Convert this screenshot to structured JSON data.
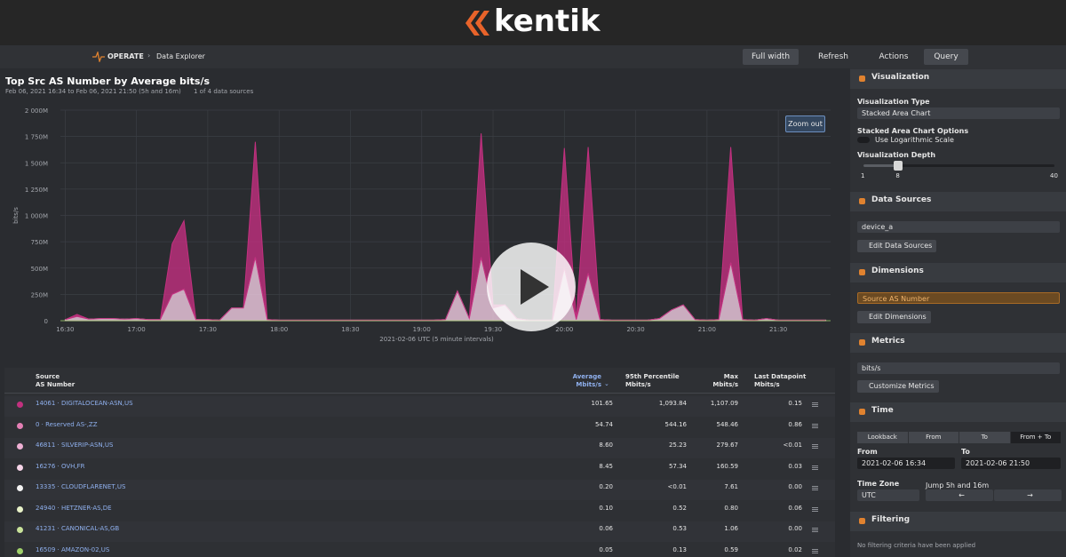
{
  "header": {
    "brand": "kentik"
  },
  "toolbar": {
    "section": "OPERATE",
    "page": "Data Explorer",
    "buttons": [
      "Full width",
      "Refresh",
      "Actions",
      "Query"
    ]
  },
  "chart_data": {
    "type": "area",
    "stacked": true,
    "title": "Top Src AS Number by Average bits/s",
    "subtitle": "Feb 06, 2021 16:34 to Feb 06, 2021 21:50 (5h and 16m)",
    "sources_note": "1 of 4 data sources",
    "zoom_button": "Zoom out",
    "x_label": "2021-02-06 UTC (5 minute intervals)",
    "y_label": "bits/s",
    "x": [
      "16:30",
      "16:35",
      "16:40",
      "16:45",
      "16:50",
      "16:55",
      "17:00",
      "17:05",
      "17:10",
      "17:15",
      "17:20",
      "17:25",
      "17:30",
      "17:35",
      "17:40",
      "17:45",
      "17:50",
      "17:55",
      "18:00",
      "18:05",
      "18:10",
      "18:15",
      "18:20",
      "18:25",
      "18:30",
      "18:35",
      "18:40",
      "18:45",
      "18:50",
      "18:55",
      "19:00",
      "19:05",
      "19:10",
      "19:15",
      "19:20",
      "19:25",
      "19:30",
      "19:35",
      "19:40",
      "19:45",
      "19:50",
      "19:55",
      "20:00",
      "20:05",
      "20:10",
      "20:15",
      "20:20",
      "20:25",
      "20:30",
      "20:35",
      "20:40",
      "20:45",
      "20:50",
      "20:55",
      "21:00",
      "21:05",
      "21:10",
      "21:15",
      "21:20",
      "21:25",
      "21:30",
      "21:35",
      "21:40",
      "21:45",
      "21:50"
    ],
    "xlim": [
      "16:28",
      "21:52"
    ],
    "xticks": [
      "16:30",
      "17:00",
      "17:30",
      "18:00",
      "18:30",
      "19:00",
      "19:30",
      "20:00",
      "20:30",
      "21:00",
      "21:30"
    ],
    "ylim": [
      0,
      2000
    ],
    "yticks": [
      0,
      {
        "value": 250,
        "label": "250M"
      },
      {
        "value": 500,
        "label": "500M"
      },
      {
        "value": 750,
        "label": "750M"
      },
      {
        "value": 1000,
        "label": "1 000M"
      },
      {
        "value": 1250,
        "label": "1 250M"
      },
      {
        "value": 1500,
        "label": "1 500M"
      },
      {
        "value": 1750,
        "label": "1 750M"
      },
      {
        "value": 2000,
        "label": "2 000M"
      }
    ],
    "grid": true,
    "series": [
      {
        "color": "#f2cde3",
        "values": [
          10,
          40,
          15,
          20,
          20,
          15,
          20,
          10,
          10,
          250,
          300,
          10,
          10,
          5,
          120,
          120,
          600,
          10,
          5,
          5,
          5,
          5,
          5,
          5,
          5,
          5,
          5,
          5,
          5,
          5,
          5,
          5,
          10,
          280,
          20,
          600,
          120,
          150,
          20,
          5,
          5,
          5,
          500,
          10,
          450,
          10,
          5,
          5,
          5,
          5,
          20,
          100,
          150,
          10,
          5,
          10,
          550,
          10,
          5,
          20,
          5,
          5,
          5,
          5,
          5
        ]
      },
      {
        "color": "#c2307f",
        "values": [
          0,
          20,
          0,
          0,
          0,
          0,
          0,
          0,
          0,
          480,
          650,
          0,
          0,
          0,
          0,
          0,
          1100,
          0,
          0,
          0,
          0,
          0,
          0,
          0,
          0,
          0,
          0,
          0,
          0,
          0,
          0,
          0,
          0,
          0,
          0,
          1180,
          30,
          0,
          0,
          0,
          0,
          0,
          1140,
          0,
          1200,
          0,
          0,
          0,
          0,
          0,
          0,
          0,
          0,
          0,
          0,
          0,
          1100,
          0,
          0,
          0,
          0,
          0,
          0,
          0,
          0
        ]
      }
    ]
  },
  "table": {
    "headers": [
      [
        "Source",
        "AS Number"
      ],
      [
        "Average",
        "Mbits/s"
      ],
      [
        "95th Percentile",
        "Mbits/s"
      ],
      [
        "Max",
        "Mbits/s"
      ],
      [
        "Last Datapoint",
        "Mbits/s"
      ]
    ],
    "rows": [
      {
        "color": "#c2307f",
        "name": "14061 · DIGITALOCEAN-ASN,US",
        "values": [
          "101.65",
          "1,093.84",
          "1,107.09",
          "0.15"
        ]
      },
      {
        "color": "#e37fb4",
        "name": "0 · Reserved AS-,ZZ",
        "values": [
          "54.74",
          "544.16",
          "548.46",
          "0.86"
        ]
      },
      {
        "color": "#eeb0d4",
        "name": "46811 · SILVERIP-ASN,US",
        "values": [
          "8.60",
          "25.23",
          "279.67",
          "<0.01"
        ]
      },
      {
        "color": "#f6d4e8",
        "name": "16276 · OVH,FR",
        "values": [
          "8.45",
          "57.34",
          "160.59",
          "0.03"
        ]
      },
      {
        "color": "#f4f4f4",
        "name": "13335 · CLOUDFLARENET,US",
        "values": [
          "0.20",
          "<0.01",
          "7.61",
          "0.00"
        ]
      },
      {
        "color": "#e8f2c8",
        "name": "24940 · HETZNER-AS,DE",
        "values": [
          "0.10",
          "0.52",
          "0.80",
          "0.06"
        ]
      },
      {
        "color": "#c9e39a",
        "name": "41231 · CANONICAL-AS,GB",
        "values": [
          "0.06",
          "0.53",
          "1.06",
          "0.00"
        ]
      },
      {
        "color": "#9fd06a",
        "name": "16509 · AMAZON-02,US",
        "values": [
          "0.05",
          "0.13",
          "0.59",
          "0.02"
        ]
      }
    ]
  },
  "sidebar": {
    "visualization": {
      "title": "Visualization",
      "type_label": "Visualization Type",
      "type": "Stacked Area Chart",
      "options_label": "Stacked Area Chart Options",
      "log_label": "Use Logarithmic Scale",
      "depth_label": "Visualization Depth",
      "depth_min": 1,
      "depth": 8,
      "depth_max": 40
    },
    "data_sources": {
      "title": "Data Sources",
      "source": "device_a",
      "button": "Edit Data Sources"
    },
    "dimensions": {
      "title": "Dimensions",
      "dimension": "Source AS Number",
      "button": "Edit Dimensions"
    },
    "metrics": {
      "title": "Metrics",
      "metric": "bits/s",
      "button": "Customize Metrics"
    },
    "time": {
      "title": "Time",
      "tabs": [
        "Lookback",
        "From",
        "To",
        "From + To"
      ],
      "from_label": "From",
      "to_label": "To",
      "from": "2021-02-06 16:34",
      "to": "2021-02-06 21:50",
      "zone_label": "Time Zone",
      "zone": "UTC",
      "jump_label": "Jump 5h and 16m"
    },
    "filtering": {
      "title": "Filtering",
      "note": "No filtering criteria have been applied"
    }
  }
}
